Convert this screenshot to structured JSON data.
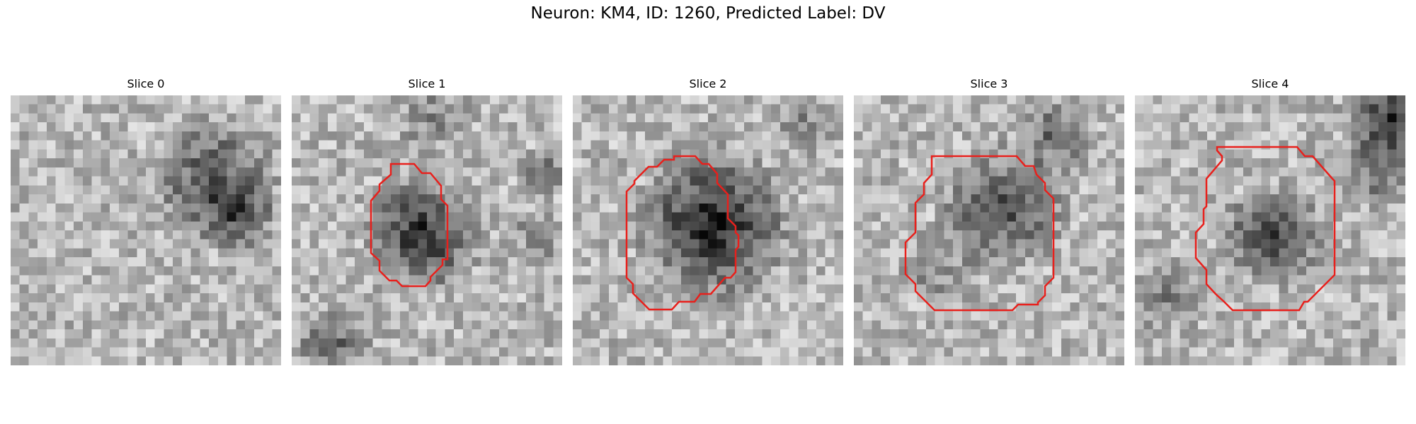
{
  "figure": {
    "title": "Neuron: KM4, ID: 1260, Predicted Label: DV",
    "outline_color": "#e8201c",
    "colormap": "gray",
    "panels": [
      {
        "title": "Slice 0",
        "has_outline": false
      },
      {
        "title": "Slice 1",
        "has_outline": true
      },
      {
        "title": "Slice 2",
        "has_outline": true
      },
      {
        "title": "Slice 3",
        "has_outline": true
      },
      {
        "title": "Slice 4",
        "has_outline": true
      }
    ]
  }
}
